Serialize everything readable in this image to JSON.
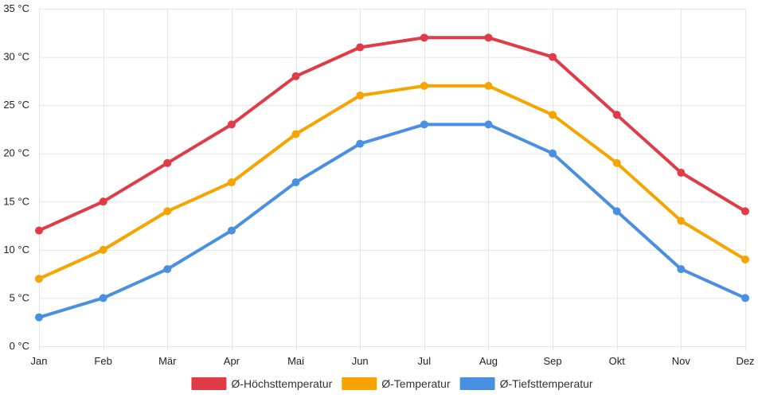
{
  "colors": {
    "grid": "#e5e5e5",
    "axis": "#cccccc"
  },
  "chart_data": {
    "type": "line",
    "categories": [
      "Jan",
      "Feb",
      "Mär",
      "Apr",
      "Mai",
      "Jun",
      "Jul",
      "Aug",
      "Sep",
      "Okt",
      "Nov",
      "Dez"
    ],
    "y_unit": "°C",
    "ylim": [
      0,
      35
    ],
    "y_ticks": [
      0,
      5,
      10,
      15,
      20,
      25,
      30,
      35
    ],
    "grid": true,
    "legend_position": "bottom",
    "series": [
      {
        "name": "Ø-Höchsttemperatur",
        "color": "#e03b46",
        "values": [
          12,
          15,
          19,
          23,
          28,
          31,
          32,
          32,
          30,
          24,
          18,
          14
        ]
      },
      {
        "name": "Ø-Temperatur",
        "color": "#f7a400",
        "values": [
          7,
          10,
          14,
          17,
          22,
          26,
          27,
          27,
          24,
          19,
          13,
          9
        ]
      },
      {
        "name": "Ø-Tiefsttemperatur",
        "color": "#4a90e2",
        "values": [
          3,
          5,
          8,
          12,
          17,
          21,
          23,
          23,
          20,
          14,
          8,
          5
        ]
      }
    ]
  }
}
